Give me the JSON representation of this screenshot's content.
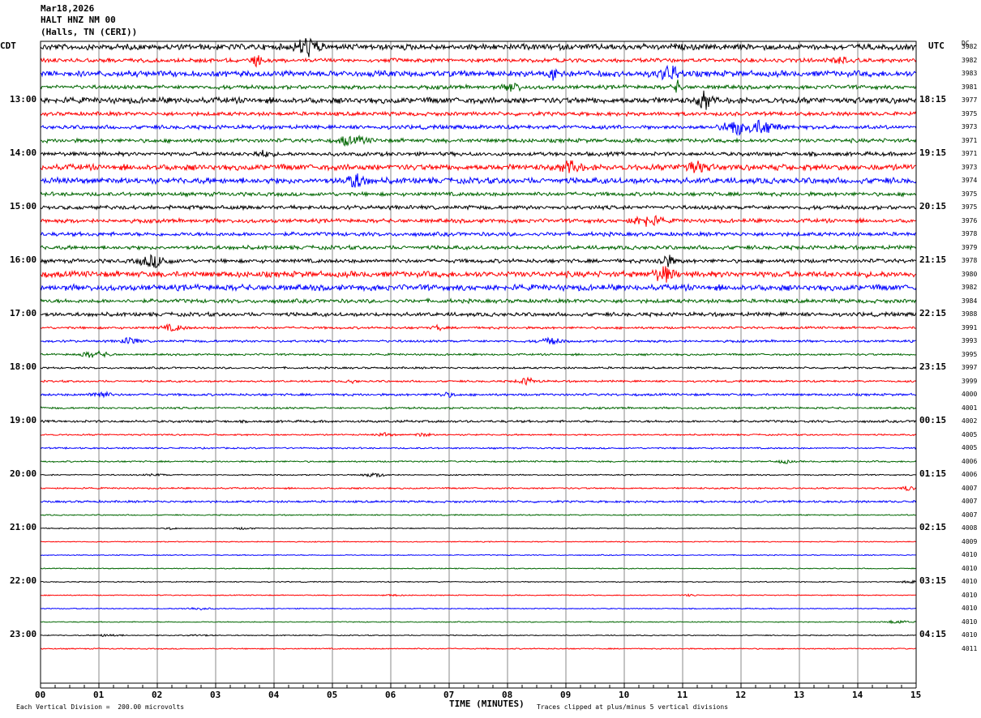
{
  "header": {
    "date": "Mar18,2026",
    "station": "HALT HNZ NM 00",
    "location": "(Halls, TN (CERI))"
  },
  "chart_data": {
    "type": "line",
    "title": "",
    "left_axis_label": "CDT",
    "right_axis_label": "UTC",
    "dc_label": "DC",
    "xlabel": "TIME (MINUTES)",
    "x_ticks": [
      "00",
      "01",
      "02",
      "03",
      "04",
      "05",
      "06",
      "07",
      "08",
      "09",
      "10",
      "11",
      "12",
      "13",
      "14",
      "15"
    ],
    "xlim": [
      0,
      15
    ],
    "left_hour_labels": [
      "13:00",
      "14:00",
      "15:00",
      "16:00",
      "17:00",
      "18:00",
      "19:00",
      "20:00",
      "21:00",
      "22:00",
      "23:00"
    ],
    "right_hour_labels": [
      "18:15",
      "19:15",
      "20:15",
      "21:15",
      "22:15",
      "23:15",
      "00:15",
      "01:15",
      "02:15",
      "03:15",
      "04:15"
    ],
    "trace_colors": [
      "#000000",
      "#ff0000",
      "#0000ff",
      "#006600"
    ],
    "dc_offsets": [
      "3982",
      "3982",
      "3983",
      "3981",
      "3977",
      "3975",
      "3973",
      "3971",
      "3971",
      "3973",
      "3974",
      "3975",
      "3975",
      "3976",
      "3978",
      "3979",
      "3978",
      "3980",
      "3982",
      "3984",
      "3988",
      "3991",
      "3993",
      "3995",
      "3997",
      "3999",
      "4000",
      "4001",
      "4002",
      "4005",
      "4005",
      "4006",
      "4006",
      "4007",
      "4007",
      "4007",
      "4008",
      "4009",
      "4010",
      "4010",
      "4010",
      "4010",
      "4010",
      "4010",
      "4010",
      "4011"
    ],
    "trace_amplitude_levels": [
      3,
      2,
      3,
      2,
      3,
      2,
      2,
      2,
      2,
      3,
      3,
      2,
      2,
      2,
      2,
      2,
      2,
      3,
      3,
      2,
      2,
      1.2,
      1.2,
      1,
      1,
      1,
      1.2,
      1,
      1.2,
      0.8,
      0.8,
      0.8,
      0.6,
      0.8,
      1.1,
      0.6,
      0.5,
      0.5,
      0.5,
      0.5,
      0.5,
      0.5,
      0.5,
      0.5,
      0.5,
      0.6
    ],
    "footer_left": "Each Vertical Division =  200.00 microvolts",
    "footer_right": "Traces clipped at plus/minus 5 vertical divisions"
  }
}
